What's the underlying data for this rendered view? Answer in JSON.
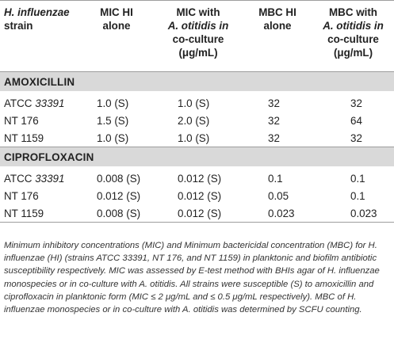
{
  "headers": {
    "strain_line1": "H. influenzae",
    "strain_line2": "strain",
    "mic_alone": [
      "MIC HI",
      "alone"
    ],
    "mic_co": [
      "MIC with",
      "A. otitidis in",
      "co-culture",
      "(μg/mL)"
    ],
    "mbc_alone": [
      "MBC HI",
      "alone"
    ],
    "mbc_co": [
      "MBC with",
      "A. otitidis in",
      "co-culture",
      "(μg/mL)"
    ]
  },
  "sections": [
    {
      "name": "AMOXICILLIN",
      "rows": [
        {
          "strain_prefix": "ATCC ",
          "strain_num": "33391",
          "mic_alone": "1.0 (S)",
          "mic_co": "1.0 (S)",
          "mbc_alone": "32",
          "mbc_co": "32"
        },
        {
          "strain_prefix": "NT 176",
          "strain_num": "",
          "mic_alone": "1.5 (S)",
          "mic_co": "2.0 (S)",
          "mbc_alone": "32",
          "mbc_co": "64"
        },
        {
          "strain_prefix": "NT 1159",
          "strain_num": "",
          "mic_alone": "1.0 (S)",
          "mic_co": "1.0 (S)",
          "mbc_alone": "32",
          "mbc_co": "32"
        }
      ]
    },
    {
      "name": "CIPROFLOXACIN",
      "rows": [
        {
          "strain_prefix": "ATCC ",
          "strain_num": "33391",
          "mic_alone": "0.008 (S)",
          "mic_co": "0.012 (S)",
          "mbc_alone": "0.1",
          "mbc_co": "0.1"
        },
        {
          "strain_prefix": "NT 176",
          "strain_num": "",
          "mic_alone": "0.012 (S)",
          "mic_co": "0.012 (S)",
          "mbc_alone": "0.05",
          "mbc_co": "0.1"
        },
        {
          "strain_prefix": "NT 1159",
          "strain_num": "",
          "mic_alone": "0.008 (S)",
          "mic_co": "0.012 (S)",
          "mbc_alone": "0.023",
          "mbc_co": "0.023"
        }
      ]
    }
  ],
  "footnote": "Minimum inhibitory concentrations (MIC) and Minimum bactericidal concentration (MBC) for H. influenzae (HI) (strains ATCC 33391, NT 176, and NT 1159) in planktonic and biofilm antibiotic susceptibility respectively. MIC was assessed by E-test method with BHIs agar of H. influenzae monospecies or in co-culture with A. otitidis. All strains were susceptible (S) to amoxicillin and ciprofloxacin in planktonic form (MIC ≤ 2 μg/mL and ≤ 0.5 μg/mL respectively). MBC of H. influenzae monospecies or in co-culture with A. otitidis was determined by SCFU counting."
}
